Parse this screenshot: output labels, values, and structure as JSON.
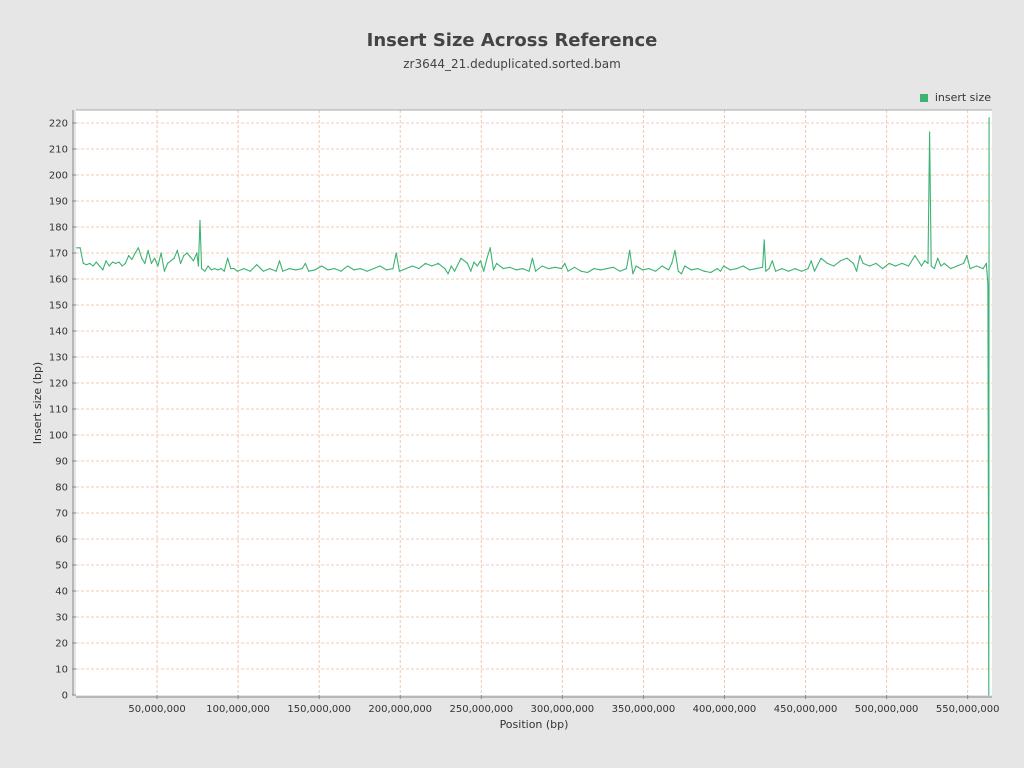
{
  "chart_data": {
    "type": "line",
    "title": "Insert Size Across Reference",
    "subtitle": "zr3644_21.deduplicated.sorted.bam",
    "xlabel": "Position (bp)",
    "ylabel": "Insert size (bp)",
    "xlim": [
      0,
      565000000
    ],
    "ylim": [
      0,
      225
    ],
    "x_ticks": [
      50000000,
      100000000,
      150000000,
      200000000,
      250000000,
      300000000,
      350000000,
      400000000,
      450000000,
      500000000,
      550000000
    ],
    "x_tick_labels": [
      "50,000,000",
      "100,000,000",
      "150,000,000",
      "200,000,000",
      "250,000,000",
      "300,000,000",
      "350,000,000",
      "400,000,000",
      "450,000,000",
      "500,000,000",
      "550,000,000"
    ],
    "y_ticks": [
      0,
      10,
      20,
      30,
      40,
      50,
      60,
      70,
      80,
      90,
      100,
      110,
      120,
      130,
      140,
      150,
      160,
      170,
      180,
      190,
      200,
      210,
      220
    ],
    "grid": true,
    "legend_position": "top-right",
    "series": [
      {
        "name": "insert size",
        "color": "#3cb371",
        "points": [
          [
            500000,
            172
          ],
          [
            2500000,
            172
          ],
          [
            4500000,
            166
          ],
          [
            6500000,
            165.5
          ],
          [
            8500000,
            166
          ],
          [
            10500000,
            165
          ],
          [
            12500000,
            166.5
          ],
          [
            14500000,
            165
          ],
          [
            16500000,
            163.5
          ],
          [
            18500000,
            167
          ],
          [
            20500000,
            165
          ],
          [
            22500000,
            166.5
          ],
          [
            24500000,
            166
          ],
          [
            26500000,
            166.5
          ],
          [
            28500000,
            165
          ],
          [
            30500000,
            166
          ],
          [
            32500000,
            169
          ],
          [
            34500000,
            167.5
          ],
          [
            36500000,
            170
          ],
          [
            38500000,
            172
          ],
          [
            40500000,
            168
          ],
          [
            42500000,
            166
          ],
          [
            44500000,
            171
          ],
          [
            46500000,
            166
          ],
          [
            48500000,
            168
          ],
          [
            50500000,
            165
          ],
          [
            52500000,
            170
          ],
          [
            54500000,
            163
          ],
          [
            56500000,
            166
          ],
          [
            58500000,
            167
          ],
          [
            60500000,
            168
          ],
          [
            62500000,
            171
          ],
          [
            64500000,
            166
          ],
          [
            66500000,
            169
          ],
          [
            68500000,
            170
          ],
          [
            70500000,
            168.5
          ],
          [
            72500000,
            167
          ],
          [
            74500000,
            170
          ],
          [
            75500000,
            165
          ],
          [
            76500000,
            182.5
          ],
          [
            77500000,
            164
          ],
          [
            79500000,
            163
          ],
          [
            81500000,
            165
          ],
          [
            83500000,
            163.5
          ],
          [
            85500000,
            164
          ],
          [
            87500000,
            163.5
          ],
          [
            89500000,
            164
          ],
          [
            91500000,
            163
          ],
          [
            93500000,
            168
          ],
          [
            95500000,
            164
          ],
          [
            97500000,
            164
          ],
          [
            99500000,
            163
          ],
          [
            103500000,
            164
          ],
          [
            107500000,
            163
          ],
          [
            111500000,
            165.5
          ],
          [
            115500000,
            163
          ],
          [
            119500000,
            164
          ],
          [
            123500000,
            163
          ],
          [
            125500000,
            167
          ],
          [
            127500000,
            163
          ],
          [
            131500000,
            164
          ],
          [
            135500000,
            163.5
          ],
          [
            139500000,
            164
          ],
          [
            141500000,
            166
          ],
          [
            143500000,
            163
          ],
          [
            147500000,
            163.5
          ],
          [
            151500000,
            165
          ],
          [
            155500000,
            163.5
          ],
          [
            159500000,
            164
          ],
          [
            163500000,
            163
          ],
          [
            167500000,
            165
          ],
          [
            171500000,
            163.5
          ],
          [
            175500000,
            164
          ],
          [
            179500000,
            163
          ],
          [
            183500000,
            164
          ],
          [
            187500000,
            165
          ],
          [
            191500000,
            163.5
          ],
          [
            195500000,
            164
          ],
          [
            197500000,
            170
          ],
          [
            199500000,
            163
          ],
          [
            203500000,
            164
          ],
          [
            207500000,
            165
          ],
          [
            211500000,
            164
          ],
          [
            215500000,
            166
          ],
          [
            219500000,
            165
          ],
          [
            223500000,
            166
          ],
          [
            227500000,
            164
          ],
          [
            229500000,
            162
          ],
          [
            231500000,
            165
          ],
          [
            233500000,
            163
          ],
          [
            237500000,
            168
          ],
          [
            241500000,
            166
          ],
          [
            243500000,
            163
          ],
          [
            245500000,
            166.5
          ],
          [
            247500000,
            165
          ],
          [
            249500000,
            167
          ],
          [
            251500000,
            163
          ],
          [
            253500000,
            168
          ],
          [
            255500000,
            172
          ],
          [
            257500000,
            163.5
          ],
          [
            259500000,
            166
          ],
          [
            263500000,
            164
          ],
          [
            267500000,
            164.5
          ],
          [
            271500000,
            163.5
          ],
          [
            275500000,
            164
          ],
          [
            279500000,
            163
          ],
          [
            281500000,
            168
          ],
          [
            283500000,
            163
          ],
          [
            287500000,
            165
          ],
          [
            291500000,
            164
          ],
          [
            295500000,
            164.5
          ],
          [
            299500000,
            164
          ],
          [
            301500000,
            166
          ],
          [
            303500000,
            163
          ],
          [
            307500000,
            164.5
          ],
          [
            311500000,
            163
          ],
          [
            315500000,
            162.5
          ],
          [
            319500000,
            164
          ],
          [
            323500000,
            163.5
          ],
          [
            327500000,
            164
          ],
          [
            331500000,
            164.5
          ],
          [
            335500000,
            163
          ],
          [
            339500000,
            164
          ],
          [
            341500000,
            171
          ],
          [
            343500000,
            162
          ],
          [
            345500000,
            165
          ],
          [
            349500000,
            163.5
          ],
          [
            353500000,
            164
          ],
          [
            357500000,
            163
          ],
          [
            361500000,
            165
          ],
          [
            365500000,
            163.5
          ],
          [
            367500000,
            166
          ],
          [
            369500000,
            171
          ],
          [
            371500000,
            163
          ],
          [
            373500000,
            162
          ],
          [
            375500000,
            165
          ],
          [
            379500000,
            163.5
          ],
          [
            383500000,
            164
          ],
          [
            387500000,
            163
          ],
          [
            391500000,
            162.5
          ],
          [
            395500000,
            164
          ],
          [
            397500000,
            163
          ],
          [
            399500000,
            165
          ],
          [
            403500000,
            163.5
          ],
          [
            407500000,
            164
          ],
          [
            411500000,
            165
          ],
          [
            415500000,
            163.5
          ],
          [
            419500000,
            164
          ],
          [
            423500000,
            164.5
          ],
          [
            424500000,
            175
          ],
          [
            425500000,
            163
          ],
          [
            427500000,
            164
          ],
          [
            429500000,
            167
          ],
          [
            431500000,
            163
          ],
          [
            435500000,
            164
          ],
          [
            439500000,
            163
          ],
          [
            443500000,
            164
          ],
          [
            447500000,
            163
          ],
          [
            451500000,
            164
          ],
          [
            453500000,
            167
          ],
          [
            455500000,
            163
          ],
          [
            459500000,
            168
          ],
          [
            463500000,
            166
          ],
          [
            467500000,
            165
          ],
          [
            471500000,
            167
          ],
          [
            475500000,
            168
          ],
          [
            479500000,
            166
          ],
          [
            481500000,
            163
          ],
          [
            483500000,
            169
          ],
          [
            485500000,
            166
          ],
          [
            489500000,
            165
          ],
          [
            493500000,
            166
          ],
          [
            497500000,
            164
          ],
          [
            501500000,
            166
          ],
          [
            505500000,
            165
          ],
          [
            509500000,
            166
          ],
          [
            513500000,
            165
          ],
          [
            517500000,
            169
          ],
          [
            521500000,
            165
          ],
          [
            523500000,
            167
          ],
          [
            525500000,
            166
          ],
          [
            526500000,
            216.5
          ],
          [
            527500000,
            165
          ],
          [
            529500000,
            164
          ],
          [
            531500000,
            168
          ],
          [
            533500000,
            165
          ],
          [
            535500000,
            166
          ],
          [
            539500000,
            164
          ],
          [
            543500000,
            165
          ],
          [
            547500000,
            166
          ],
          [
            549500000,
            169
          ],
          [
            551500000,
            164
          ],
          [
            555500000,
            165
          ],
          [
            559500000,
            164
          ],
          [
            561500000,
            166
          ],
          [
            562500000,
            158
          ],
          [
            563000000,
            0
          ],
          [
            563200000,
            222
          ]
        ]
      }
    ]
  }
}
